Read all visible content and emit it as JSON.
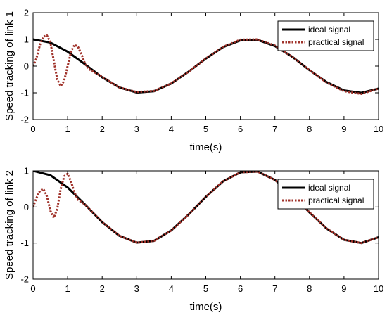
{
  "chart_data": [
    {
      "type": "line",
      "xlabel": "time(s)",
      "ylabel": "Speed tracking of link 1",
      "xlim": [
        0,
        10
      ],
      "ylim": [
        -2,
        2
      ],
      "xticks": [
        "0",
        "1",
        "2",
        "3",
        "4",
        "5",
        "6",
        "7",
        "8",
        "9",
        "10"
      ],
      "yticks": [
        "-2",
        "-1",
        "0",
        "1",
        "2"
      ],
      "legend_position": "top-right",
      "grid": false,
      "series": [
        {
          "name": "ideal signal",
          "color": "#000000",
          "style": "solid",
          "x": [
            0,
            0.5,
            1,
            1.5,
            2,
            2.5,
            3,
            3.5,
            4,
            4.5,
            5,
            5.5,
            6,
            6.5,
            7,
            7.5,
            8,
            8.5,
            9,
            9.5,
            10
          ],
          "y": [
            1.0,
            0.88,
            0.54,
            0.07,
            -0.42,
            -0.8,
            -0.99,
            -0.94,
            -0.65,
            -0.21,
            0.28,
            0.71,
            0.96,
            0.98,
            0.75,
            0.35,
            -0.15,
            -0.6,
            -0.91,
            -1.0,
            -0.84
          ]
        },
        {
          "name": "practical signal",
          "color": "#a0322a",
          "style": "dotted",
          "x": [
            0,
            0.1,
            0.2,
            0.3,
            0.4,
            0.5,
            0.6,
            0.7,
            0.8,
            0.9,
            1.0,
            1.1,
            1.2,
            1.3,
            1.4,
            1.5,
            1.6,
            1.8,
            2,
            2.5,
            3,
            3.5,
            4,
            4.5,
            5,
            5.5,
            6,
            6.5,
            7,
            7.5,
            8,
            8.5,
            9,
            9.5,
            10
          ],
          "y": [
            0.0,
            0.3,
            0.8,
            1.1,
            1.15,
            0.9,
            0.2,
            -0.5,
            -0.75,
            -0.55,
            0.0,
            0.55,
            0.8,
            0.72,
            0.45,
            0.1,
            -0.1,
            -0.25,
            -0.4,
            -0.8,
            -0.97,
            -0.93,
            -0.65,
            -0.21,
            0.28,
            0.72,
            0.99,
            1.0,
            0.77,
            0.35,
            -0.15,
            -0.62,
            -0.94,
            -1.04,
            -0.84
          ]
        }
      ]
    },
    {
      "type": "line",
      "xlabel": "time(s)",
      "ylabel": "Speed tracking of link 2",
      "xlim": [
        0,
        10
      ],
      "ylim": [
        -2,
        1
      ],
      "xticks": [
        "0",
        "1",
        "2",
        "3",
        "4",
        "5",
        "6",
        "7",
        "8",
        "9",
        "10"
      ],
      "yticks": [
        "-2",
        "-1",
        "0",
        "1"
      ],
      "legend_position": "top-right",
      "grid": false,
      "series": [
        {
          "name": "ideal signal",
          "color": "#000000",
          "style": "solid",
          "x": [
            0,
            0.5,
            1,
            1.5,
            2,
            2.5,
            3,
            3.5,
            4,
            4.5,
            5,
            5.5,
            6,
            6.5,
            7,
            7.5,
            8,
            8.5,
            9,
            9.5,
            10
          ],
          "y": [
            1.0,
            0.88,
            0.54,
            0.07,
            -0.42,
            -0.8,
            -0.99,
            -0.94,
            -0.65,
            -0.21,
            0.28,
            0.71,
            0.96,
            0.98,
            0.75,
            0.35,
            -0.15,
            -0.6,
            -0.91,
            -1.0,
            -0.84
          ]
        },
        {
          "name": "practical signal",
          "color": "#a0322a",
          "style": "dotted",
          "x": [
            0,
            0.1,
            0.2,
            0.3,
            0.4,
            0.5,
            0.6,
            0.7,
            0.8,
            0.9,
            1.0,
            1.1,
            1.2,
            1.3,
            1.5,
            2,
            2.5,
            3,
            3.5,
            4,
            4.5,
            5,
            5.5,
            6,
            6.5,
            7,
            7.5,
            8,
            8.5,
            9,
            9.5,
            10
          ],
          "y": [
            0.0,
            0.25,
            0.45,
            0.5,
            0.3,
            -0.1,
            -0.3,
            -0.05,
            0.5,
            0.85,
            0.92,
            0.7,
            0.4,
            0.2,
            0.07,
            -0.42,
            -0.8,
            -0.99,
            -0.94,
            -0.65,
            -0.21,
            0.28,
            0.71,
            0.96,
            0.98,
            0.75,
            0.35,
            -0.15,
            -0.6,
            -0.91,
            -1.0,
            -0.84
          ]
        }
      ]
    }
  ]
}
